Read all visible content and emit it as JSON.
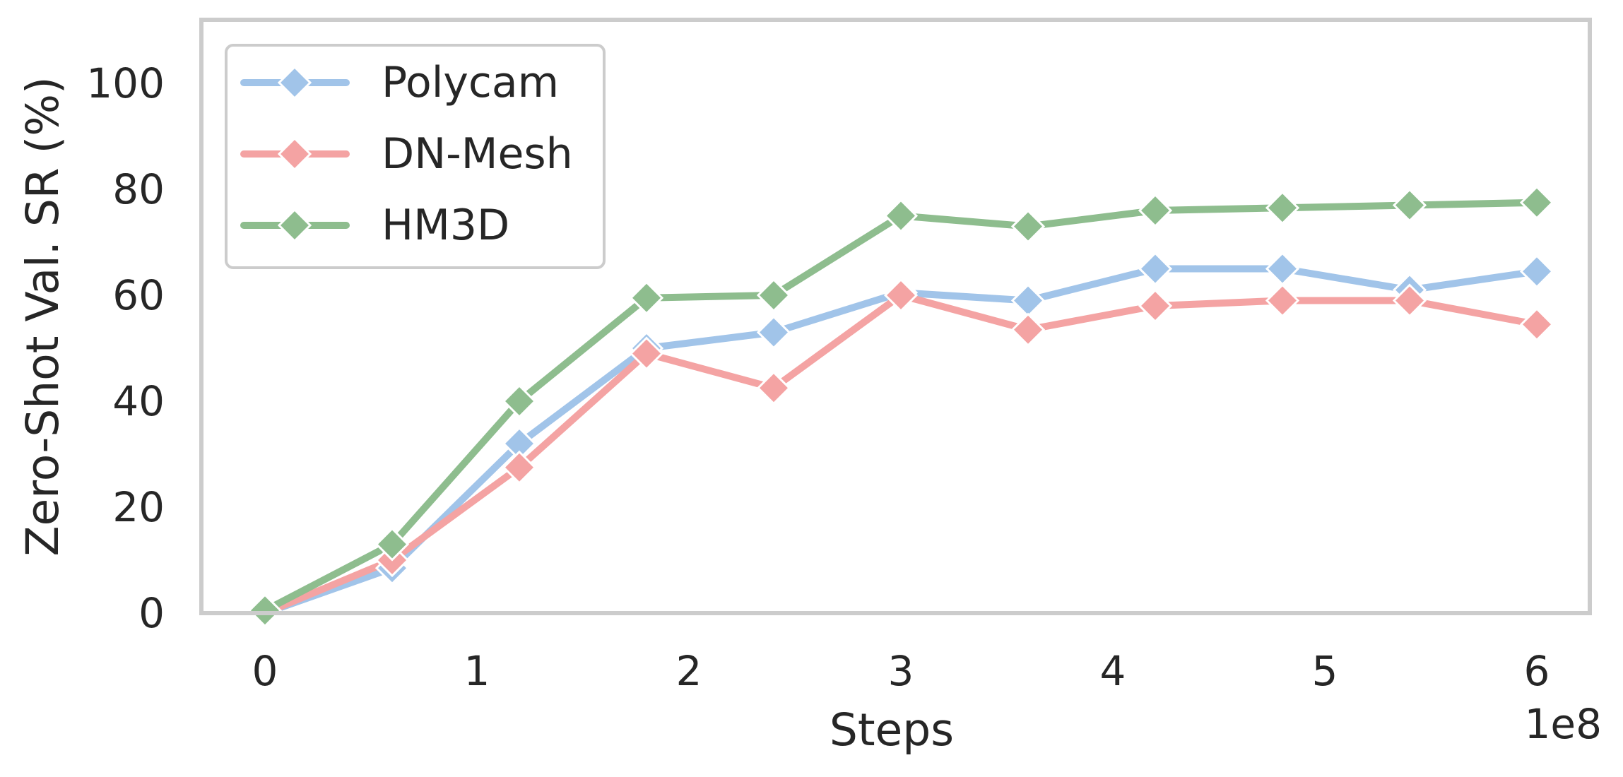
{
  "chart_data": {
    "type": "line",
    "title": "",
    "xlabel": "Steps",
    "ylabel": "Zero-Shot Val. SR (%)",
    "x_offset_label": "1e8",
    "xlim": [
      -0.3,
      6.25
    ],
    "ylim": [
      0,
      112
    ],
    "x_ticks": [
      0,
      1,
      2,
      3,
      4,
      5,
      6
    ],
    "y_ticks": [
      0,
      20,
      40,
      60,
      80,
      100
    ],
    "grid": false,
    "legend_position": "top-left",
    "x": [
      0,
      0.6,
      1.2,
      1.8,
      2.4,
      3.0,
      3.6,
      4.2,
      4.8,
      5.4,
      6.0
    ],
    "series": [
      {
        "name": "Polycam",
        "color": "#a1c4e9",
        "marker": "diamond",
        "values": [
          0,
          8.5,
          32,
          50,
          53,
          60.5,
          59,
          65,
          65,
          61,
          64.5
        ]
      },
      {
        "name": "DN-Mesh",
        "color": "#f4a3a3",
        "marker": "diamond",
        "values": [
          0,
          10,
          27.5,
          49,
          42.5,
          60,
          53.5,
          58,
          59,
          59,
          54.5
        ]
      },
      {
        "name": "HM3D",
        "color": "#8ebd8e",
        "marker": "diamond",
        "values": [
          0.5,
          13,
          40,
          59.5,
          60,
          75,
          73,
          76,
          76.5,
          77,
          77.5
        ]
      }
    ]
  }
}
